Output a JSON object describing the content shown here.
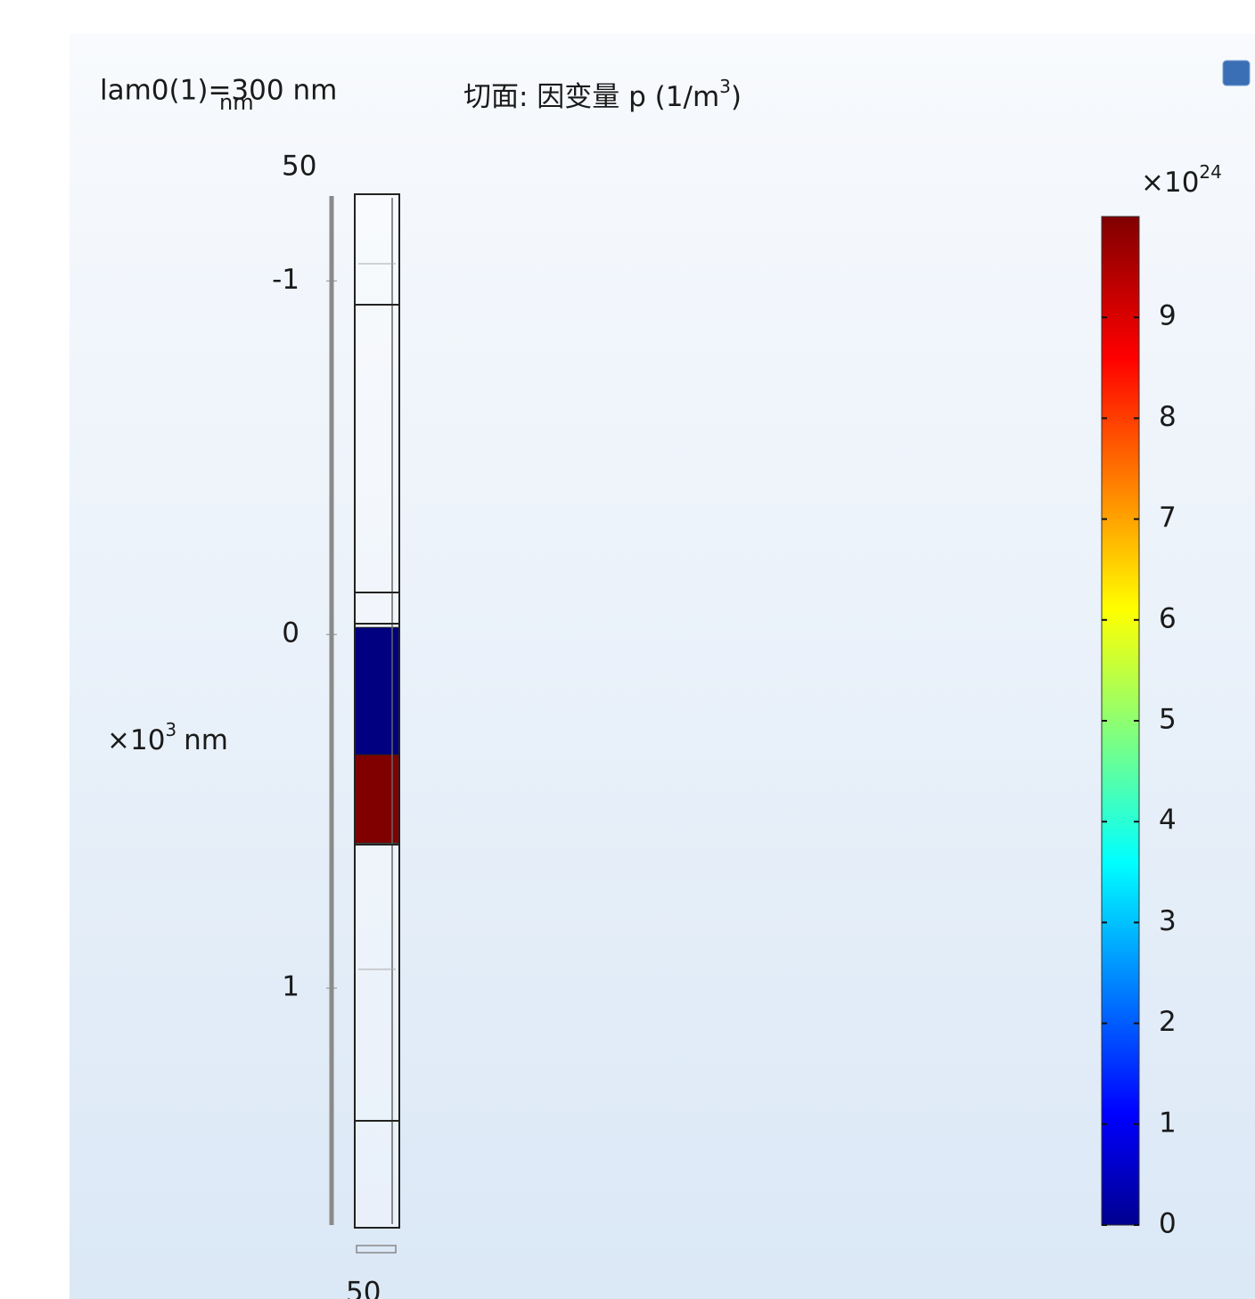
{
  "header": {
    "parameter": "lam0(1)=300 nm",
    "overlap_unit": "nm",
    "title": "切面: 因变量 p (1/m",
    "title_power": "3",
    "title_close": ")"
  },
  "z_axis": {
    "multiplier": "×10",
    "power": "3",
    "unit": "nm",
    "ticks": [
      -1,
      0,
      1
    ],
    "lim": [
      -1.24,
      1.67
    ],
    "top_label": 50,
    "bottom_label": 50
  },
  "regions": [
    {
      "zlim": [
        -0.02,
        0.34
      ],
      "value": 0
    },
    {
      "zlim": [
        0.34,
        0.59
      ],
      "value": 10
    }
  ],
  "colorbar": {
    "multiplier": "×10",
    "power": "24",
    "ticks": [
      0,
      1,
      2,
      3,
      4,
      5,
      6,
      7,
      8,
      9
    ],
    "lim": [
      0,
      10
    ]
  }
}
